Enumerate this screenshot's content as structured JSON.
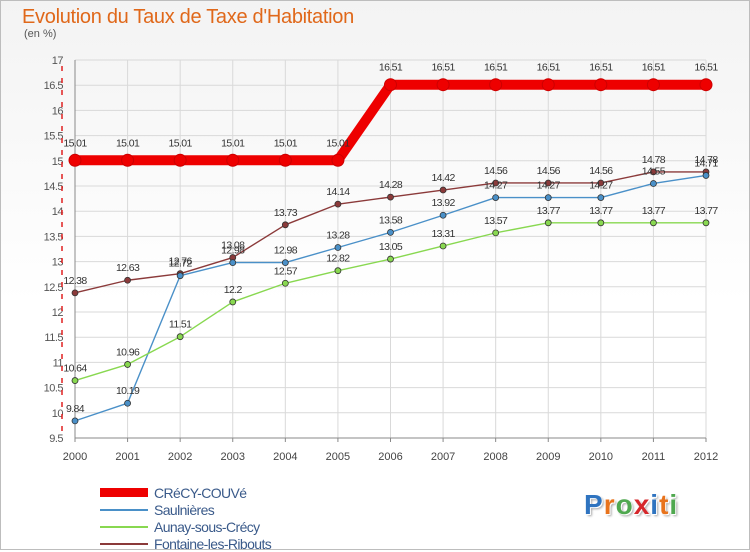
{
  "chart_data": {
    "type": "line",
    "title": "Evolution du Taux de Taxe d'Habitation",
    "subtitle": "(en %)",
    "x": [
      "2000",
      "2001",
      "2002",
      "2003",
      "2004",
      "2005",
      "2006",
      "2007",
      "2008",
      "2009",
      "2010",
      "2011",
      "2012"
    ],
    "ylim": [
      9.5,
      17
    ],
    "yticks": [
      "9.5",
      "10",
      "10.5",
      "11",
      "11.5",
      "12",
      "12.5",
      "13",
      "13.5",
      "14",
      "14.5",
      "15",
      "15.5",
      "16",
      "16.5",
      "17"
    ],
    "grid": true,
    "legend_position": "bottom-left",
    "series": [
      {
        "name": "CRéCY-COUVé",
        "color": "#ee0000",
        "values": [
          15.01,
          15.01,
          15.01,
          15.01,
          15.01,
          15.01,
          16.51,
          16.51,
          16.51,
          16.51,
          16.51,
          16.51,
          16.51
        ],
        "labels": [
          "15.01",
          "15.01",
          "15.01",
          "15.01",
          "15.01",
          "15.01",
          "16.51",
          "16.51",
          "16.51",
          "16.51",
          "16.51",
          "16.51",
          "16.51"
        ]
      },
      {
        "name": "Saulnières",
        "color": "#4a90c8",
        "values": [
          9.84,
          10.19,
          12.72,
          12.98,
          12.98,
          13.28,
          13.58,
          13.92,
          14.27,
          14.27,
          14.27,
          14.55,
          14.71
        ],
        "labels": [
          "9.84",
          "10.19",
          "12.72",
          "12.98",
          "12.98",
          "13.28",
          "13.58",
          "13.92",
          "14.27",
          "14.27",
          "14.27",
          "14.55",
          "14.71"
        ]
      },
      {
        "name": "Aunay-sous-Crécy",
        "color": "#88d850",
        "values": [
          10.64,
          10.96,
          11.51,
          12.2,
          12.57,
          12.82,
          13.05,
          13.31,
          13.57,
          13.77,
          13.77,
          13.77,
          13.77
        ],
        "labels": [
          "10.64",
          "10.96",
          "11.51",
          "12.2",
          "12.57",
          "12.82",
          "13.05",
          "13.31",
          "13.57",
          "13.77",
          "13.77",
          "13.77",
          "13.77"
        ]
      },
      {
        "name": "Fontaine-les-Ribouts",
        "color": "#8b3a3a",
        "values": [
          12.38,
          12.63,
          12.76,
          13.08,
          13.73,
          14.14,
          14.28,
          14.42,
          14.56,
          14.56,
          14.56,
          14.78,
          14.78
        ],
        "labels": [
          "12.38",
          "12.63",
          "12.76",
          "13.08",
          "13.73",
          "14.14",
          "14.28",
          "14.42",
          "14.56",
          "14.56",
          "14.56",
          "14.78",
          "14.78"
        ]
      }
    ]
  },
  "brand": {
    "text": "Proxiti",
    "letters": [
      "P",
      "r",
      "o",
      "x",
      "i",
      "t",
      "i"
    ],
    "colors": [
      "#2f74c0",
      "#e8731c",
      "#4fa84f",
      "#d6272b",
      "#2f74c0",
      "#e8731c",
      "#4fa84f"
    ]
  }
}
